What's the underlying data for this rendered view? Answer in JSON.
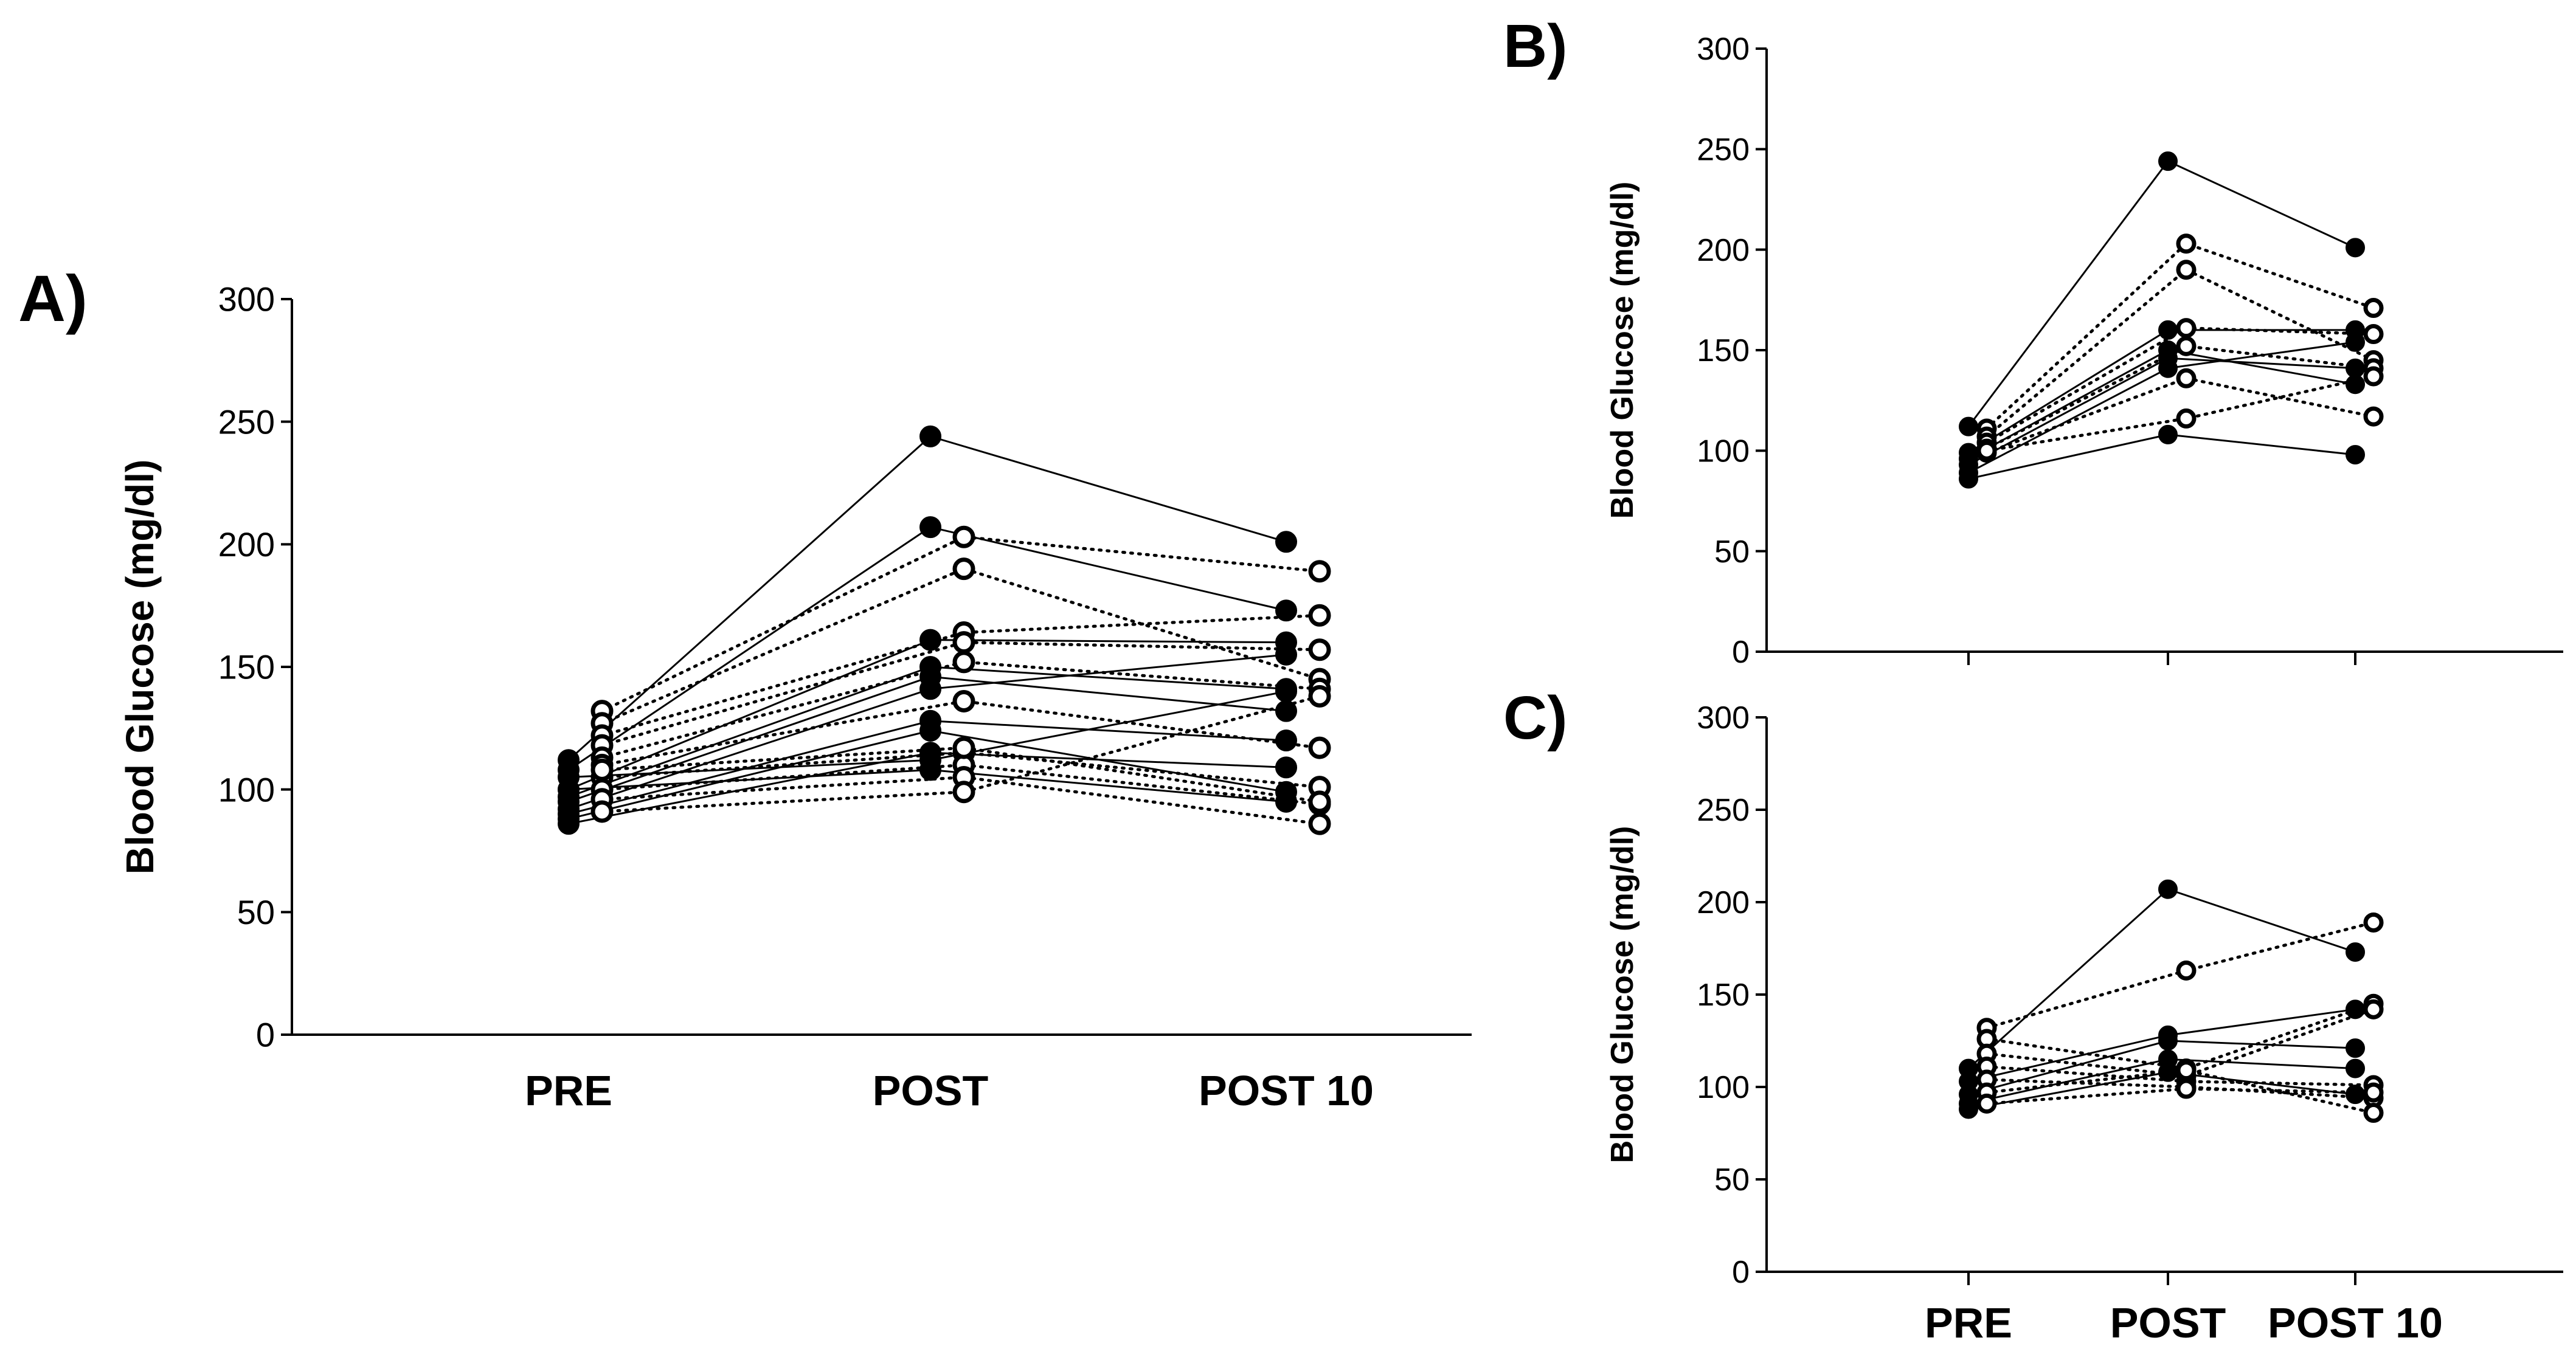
{
  "chart_data": [
    {
      "panel": "A)",
      "type": "line",
      "ylabel": "Blood Glucose (mg/dl)",
      "categories": [
        "PRE",
        "POST",
        "POST 10"
      ],
      "ylim": [
        0,
        300
      ],
      "yticks": [
        "0",
        "50",
        "100",
        "150",
        "200",
        "250",
        "300"
      ],
      "series_closed": [
        [
          112,
          244,
          201
        ],
        [
          108,
          207,
          173
        ],
        [
          100,
          161,
          160
        ],
        [
          97,
          150,
          141
        ],
        [
          95,
          146,
          132
        ],
        [
          92,
          141,
          155
        ],
        [
          90,
          128,
          120
        ],
        [
          88,
          124,
          99
        ],
        [
          86,
          115,
          109
        ],
        [
          100,
          108,
          95
        ],
        [
          105,
          112,
          140
        ]
      ],
      "series_open": [
        [
          132,
          203,
          189
        ],
        [
          127,
          190,
          145
        ],
        [
          122,
          164,
          171
        ],
        [
          118,
          160,
          157
        ],
        [
          113,
          152,
          141
        ],
        [
          110,
          136,
          117
        ],
        [
          105,
          115,
          101
        ],
        [
          100,
          110,
          94
        ],
        [
          96,
          105,
          86
        ],
        [
          91,
          99,
          138
        ],
        [
          108,
          117,
          95
        ]
      ]
    },
    {
      "panel": "B)",
      "type": "line",
      "ylabel": "Blood Glucose (mg/dl)",
      "categories": [
        "PRE",
        "POST",
        "POST 10"
      ],
      "ylim": [
        0,
        300
      ],
      "yticks": [
        "0",
        "50",
        "100",
        "150",
        "200",
        "250",
        "300"
      ],
      "series_closed": [
        [
          112,
          244,
          201
        ],
        [
          99,
          160,
          160
        ],
        [
          96,
          150,
          133
        ],
        [
          93,
          146,
          141
        ],
        [
          89,
          141,
          154
        ],
        [
          86,
          108,
          98
        ]
      ],
      "series_open": [
        [
          111,
          203,
          171
        ],
        [
          107,
          190,
          145
        ],
        [
          104,
          161,
          158
        ],
        [
          101,
          152,
          141
        ],
        [
          99,
          136,
          117
        ],
        [
          100,
          116,
          137
        ]
      ]
    },
    {
      "panel": "C)",
      "type": "line",
      "ylabel": "Blood Glucose (mg/dl)",
      "categories": [
        "PRE",
        "POST",
        "POST 10"
      ],
      "ylim": [
        0,
        300
      ],
      "yticks": [
        "0",
        "50",
        "100",
        "150",
        "200",
        "250",
        "300"
      ],
      "series_closed": [
        [
          110,
          207,
          173
        ],
        [
          103,
          128,
          142
        ],
        [
          96,
          125,
          121
        ],
        [
          91,
          115,
          110
        ],
        [
          88,
          108,
          96
        ]
      ],
      "series_open": [
        [
          132,
          163,
          189
        ],
        [
          126,
          110,
          145
        ],
        [
          118,
          106,
          142
        ],
        [
          111,
          103,
          101
        ],
        [
          104,
          100,
          94
        ],
        [
          97,
          109,
          86
        ],
        [
          91,
          99,
          97
        ]
      ]
    }
  ]
}
